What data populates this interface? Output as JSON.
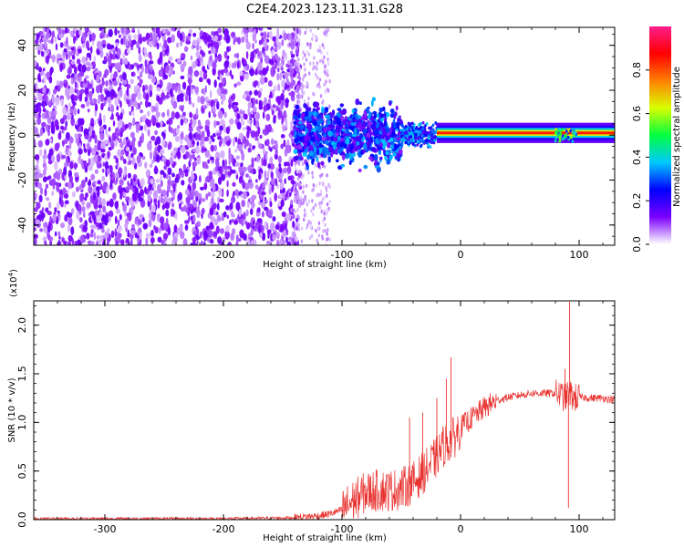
{
  "title": "C2E4.2023.123.11.31.G28",
  "chart_data": [
    {
      "type": "heatmap",
      "xlabel": "Height of straight line (km)",
      "ylabel": "Frequency (Hz)",
      "xlim": [
        -360,
        130
      ],
      "ylim": [
        -49,
        48
      ],
      "x_ticks": [
        -300,
        -200,
        -100,
        0,
        100
      ],
      "x_tick_labels": [
        "-300",
        "-200",
        "-100",
        "0",
        "100"
      ],
      "y_ticks": [
        -40,
        -20,
        0,
        20,
        40
      ],
      "y_tick_labels": [
        "-40",
        "-20",
        "0",
        "20",
        "40"
      ],
      "colorbar": {
        "label": "Normalized spectral amplitude",
        "range": [
          0,
          1
        ],
        "ticks": [
          0.0,
          0.2,
          0.4,
          0.6,
          0.8
        ],
        "tick_labels": [
          "0.0",
          "0.2",
          "0.4",
          "0.6",
          "0.8"
        ],
        "colormap": [
          "#ffffff",
          "#7b00ff",
          "#0000ff",
          "#00c8ff",
          "#00ff40",
          "#d8ff00",
          "#ff8000",
          "#ff0000",
          "#ff1e8c"
        ]
      },
      "regions": [
        {
          "x_range": [
            -360,
            -140
          ],
          "freq_range": [
            -49,
            48
          ],
          "amplitude": 0.12,
          "description": "broad noise"
        },
        {
          "x_range": [
            -140,
            -110
          ],
          "freq_range": [
            -49,
            48
          ],
          "amplitude": 0.05,
          "description": "fading noise"
        },
        {
          "x_range": [
            -140,
            -50
          ],
          "freq_range": [
            -14,
            14
          ],
          "amplitude": 0.3,
          "description": "signal onset"
        },
        {
          "x_range": [
            -50,
            -20
          ],
          "freq_range": [
            -6,
            6
          ],
          "amplitude": 0.35,
          "description": "narrowing"
        },
        {
          "x_range": [
            -20,
            130
          ],
          "freq_range": [
            -1.5,
            3
          ],
          "amplitude": 0.85,
          "description": "carrier line"
        }
      ]
    },
    {
      "type": "line",
      "xlabel": "Height of straight line (km)",
      "ylabel": "SNR (10 * v/v)",
      "y_multiplier": "(x10",
      "y_multiplier_exp": "4",
      "y_multiplier_close": ")",
      "xlim": [
        -360,
        130
      ],
      "ylim": [
        0,
        2.25
      ],
      "x_ticks": [
        -300,
        -200,
        -100,
        0,
        100
      ],
      "x_tick_labels": [
        "-300",
        "-200",
        "-100",
        "0",
        "100"
      ],
      "y_ticks": [
        0.0,
        0.5,
        1.0,
        1.5,
        2.0
      ],
      "y_tick_labels": [
        "0.0",
        "0.5",
        "1.0",
        "1.5",
        "2.0"
      ],
      "color": "#e8322f",
      "series": [
        {
          "x": [
            -360,
            -300,
            -200,
            -140,
            -120,
            -110,
            -100,
            -90,
            -80,
            -70,
            -60,
            -50,
            -40,
            -30,
            -20,
            -15,
            -10,
            -5,
            0,
            10,
            20,
            30,
            40,
            50,
            60,
            70,
            80,
            85,
            88,
            90,
            92,
            94,
            96,
            100,
            110,
            120,
            130
          ],
          "y": [
            0.01,
            0.01,
            0.01,
            0.02,
            0.04,
            0.06,
            0.1,
            0.2,
            0.28,
            0.3,
            0.3,
            0.32,
            0.38,
            0.5,
            0.65,
            0.75,
            0.8,
            0.85,
            0.95,
            1.05,
            1.15,
            1.22,
            1.26,
            1.28,
            1.3,
            1.3,
            1.3,
            1.28,
            1.25,
            1.28,
            1.3,
            1.27,
            1.25,
            1.26,
            1.25,
            1.25,
            1.23
          ]
        }
      ],
      "spikes": [
        {
          "x": -8,
          "y": 1.67
        },
        {
          "x": -12,
          "y": 1.45
        },
        {
          "x": -20,
          "y": 1.25
        },
        {
          "x": -43,
          "y": 1.05
        },
        {
          "x": -32,
          "y": 1.1
        },
        {
          "x": 92,
          "y": 2.25
        },
        {
          "x": 91,
          "y": 0.12
        },
        {
          "x": 88,
          "y": 1.55
        }
      ]
    }
  ]
}
